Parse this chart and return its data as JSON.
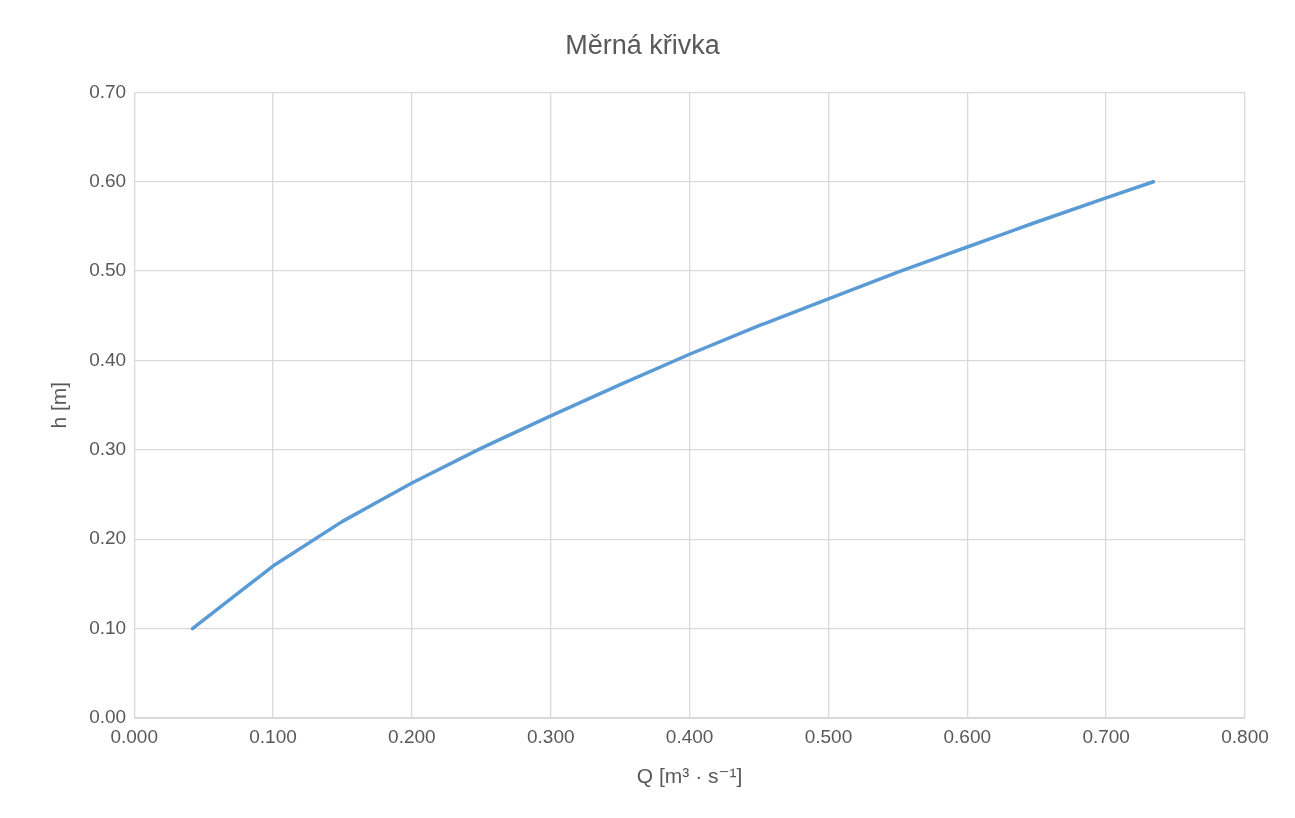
{
  "chart_data": {
    "type": "line",
    "title": "Měrná křivka",
    "xlabel": "Q [m³ · s⁻¹]",
    "ylabel": "h [m]",
    "x": [
      0.042,
      0.076,
      0.1,
      0.15,
      0.2,
      0.25,
      0.3,
      0.35,
      0.4,
      0.45,
      0.5,
      0.55,
      0.6,
      0.65,
      0.7,
      0.734
    ],
    "series": [
      {
        "color": "#5b9bd5",
        "values": [
          0.1,
          0.141,
          0.17,
          0.22,
          0.263,
          0.302,
          0.338,
          0.373,
          0.407,
          0.439,
          0.469,
          0.499,
          0.527,
          0.555,
          0.582,
          0.6
        ]
      }
    ],
    "xlim": [
      0,
      0.8
    ],
    "ylim": [
      0,
      0.7
    ],
    "xticks": [
      {
        "value": 0,
        "label": "0.000"
      },
      {
        "value": 0.1,
        "label": "0.100"
      },
      {
        "value": 0.2,
        "label": "0.200"
      },
      {
        "value": 0.3,
        "label": "0.300"
      },
      {
        "value": 0.4,
        "label": "0.400"
      },
      {
        "value": 0.5,
        "label": "0.500"
      },
      {
        "value": 0.6,
        "label": "0.600"
      },
      {
        "value": 0.7,
        "label": "0.700"
      },
      {
        "value": 0.8,
        "label": "0.800"
      }
    ],
    "yticks": [
      {
        "value": 0,
        "label": "0.00"
      },
      {
        "value": 0.1,
        "label": "0.10"
      },
      {
        "value": 0.2,
        "label": "0.20"
      },
      {
        "value": 0.3,
        "label": "0.30"
      },
      {
        "value": 0.4,
        "label": "0.40"
      },
      {
        "value": 0.5,
        "label": "0.50"
      },
      {
        "value": 0.6,
        "label": "0.60"
      },
      {
        "value": 0.7,
        "label": "0.70"
      }
    ],
    "grid": true,
    "marker": "none",
    "line_style": "solid"
  }
}
